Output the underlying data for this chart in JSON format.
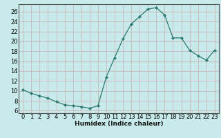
{
  "x": [
    0,
    1,
    2,
    3,
    4,
    5,
    6,
    7,
    8,
    9,
    10,
    11,
    12,
    13,
    14,
    15,
    16,
    17,
    18,
    19,
    20,
    21,
    22,
    23
  ],
  "y": [
    10.2,
    9.5,
    9.0,
    8.5,
    7.8,
    7.2,
    7.0,
    6.8,
    6.5,
    7.0,
    12.8,
    16.7,
    20.5,
    23.5,
    25.0,
    26.5,
    26.8,
    25.3,
    20.7,
    20.7,
    18.2,
    17.1,
    16.2,
    18.2
  ],
  "line_color": "#2d7a6e",
  "marker": "D",
  "marker_size": 2.2,
  "bg_color": "#c8eaea",
  "grid_color_v": "#c8b8b8",
  "grid_color_h": "#c8b8b8",
  "xlabel": "Humidex (Indice chaleur)",
  "xlim": [
    -0.5,
    23.5
  ],
  "ylim": [
    5.5,
    27.5
  ],
  "yticks": [
    6,
    8,
    10,
    12,
    14,
    16,
    18,
    20,
    22,
    24,
    26
  ],
  "xticks": [
    0,
    1,
    2,
    3,
    4,
    5,
    6,
    7,
    8,
    9,
    10,
    11,
    12,
    13,
    14,
    15,
    16,
    17,
    18,
    19,
    20,
    21,
    22,
    23
  ],
  "xlabel_fontsize": 6.5,
  "tick_fontsize": 6.0
}
